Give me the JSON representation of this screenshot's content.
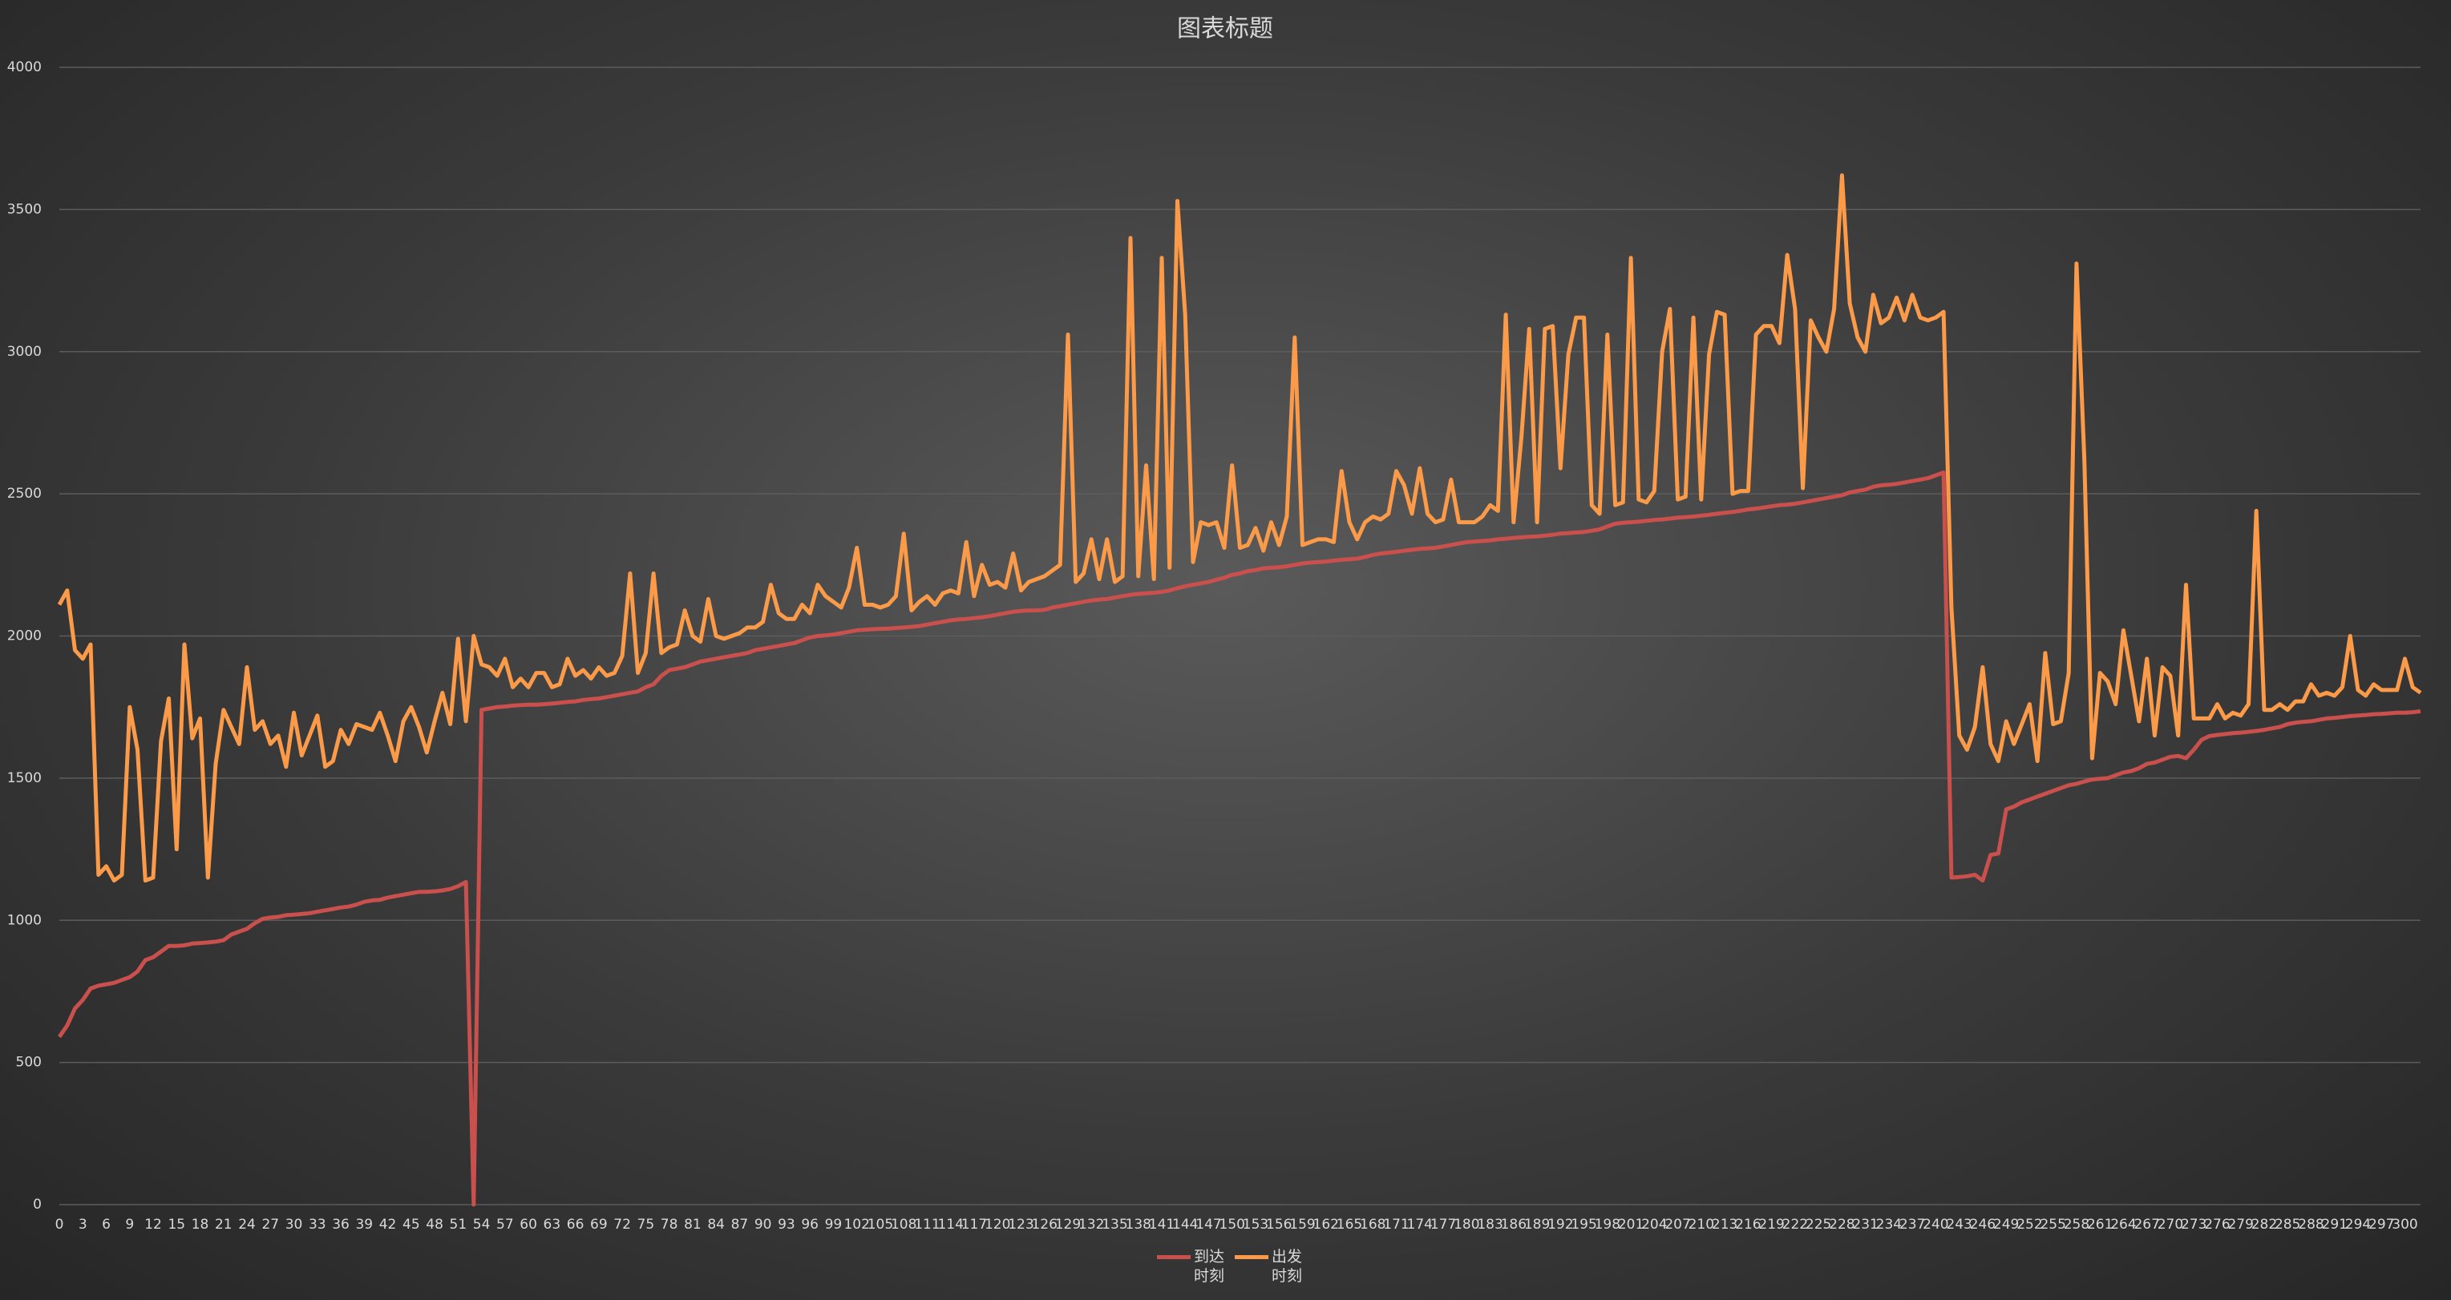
{
  "chart_data": {
    "type": "line",
    "title": "图表标题",
    "x": [
      0,
      1,
      2,
      3,
      4,
      5,
      6,
      7,
      8,
      9,
      10,
      11,
      12,
      13,
      14,
      15,
      16,
      17,
      18,
      19,
      20,
      21,
      22,
      23,
      24,
      25,
      26,
      27,
      28,
      29,
      30,
      31,
      32,
      33,
      34,
      35,
      36,
      37,
      38,
      39,
      40,
      41,
      42,
      43,
      44,
      45,
      46,
      47,
      48,
      49,
      50,
      51,
      52,
      53,
      54,
      55,
      56,
      57,
      58,
      59,
      60,
      61,
      62,
      63,
      64,
      65,
      66,
      67,
      68,
      69,
      70,
      71,
      72,
      73,
      74,
      75,
      76,
      77,
      78,
      79,
      80,
      81,
      82,
      83,
      84,
      85,
      86,
      87,
      88,
      89,
      90,
      91,
      92,
      93,
      94,
      95,
      96,
      97,
      98,
      99,
      100,
      101,
      102,
      103,
      104,
      105,
      106,
      107,
      108,
      109,
      110,
      111,
      112,
      113,
      114,
      115,
      116,
      117,
      118,
      119,
      120,
      121,
      122,
      123,
      124,
      125,
      126,
      127,
      128,
      129,
      130,
      131,
      132,
      133,
      134,
      135,
      136,
      137,
      138,
      139,
      140,
      141,
      142,
      143,
      144,
      145,
      146,
      147,
      148,
      149,
      150,
      151,
      152,
      153,
      154,
      155,
      156,
      157,
      158,
      159,
      160,
      161,
      162,
      163,
      164,
      165,
      166,
      167,
      168,
      169,
      170,
      171,
      172,
      173,
      174,
      175,
      176,
      177,
      178,
      179,
      180,
      181,
      182,
      183,
      184,
      185,
      186,
      187,
      188,
      189,
      190,
      191,
      192,
      193,
      194,
      195,
      196,
      197,
      198,
      199,
      200,
      201,
      202,
      203,
      204,
      205,
      206,
      207,
      208,
      209,
      210,
      211,
      212,
      213,
      214,
      215,
      216,
      217,
      218,
      219,
      220,
      221,
      222,
      223,
      224,
      225,
      226,
      227,
      228,
      229,
      230,
      231,
      232,
      233,
      234,
      235,
      236,
      237,
      238,
      239,
      240,
      241,
      242,
      243,
      244,
      245,
      246,
      247,
      248,
      249,
      250,
      251,
      252,
      253,
      254,
      255,
      256,
      257,
      258,
      259,
      260,
      261,
      262,
      263,
      264,
      265,
      266,
      267,
      268,
      269,
      270,
      271,
      272,
      273,
      274,
      275,
      276,
      277,
      278,
      279,
      280,
      281,
      282,
      283,
      284,
      285,
      286,
      287,
      288,
      289,
      290,
      291,
      292,
      293,
      294,
      295,
      296,
      297,
      298,
      299,
      300,
      301,
      302
    ],
    "xlim": [
      0,
      302
    ],
    "xticks": [
      0,
      3,
      6,
      9,
      12,
      15,
      18,
      21,
      24,
      27,
      30,
      33,
      36,
      39,
      42,
      45,
      48,
      51,
      54,
      57,
      60,
      63,
      66,
      69,
      72,
      75,
      78,
      81,
      84,
      87,
      90,
      93,
      96,
      99,
      102,
      105,
      108,
      111,
      114,
      117,
      120,
      123,
      126,
      129,
      132,
      135,
      138,
      141,
      144,
      147,
      150,
      153,
      156,
      159,
      162,
      165,
      168,
      171,
      174,
      177,
      180,
      183,
      186,
      189,
      192,
      195,
      198,
      201,
      204,
      207,
      210,
      213,
      216,
      219,
      222,
      225,
      228,
      231,
      234,
      237,
      240,
      243,
      246,
      249,
      252,
      255,
      258,
      261,
      264,
      267,
      270,
      273,
      276,
      279,
      282,
      285,
      288,
      291,
      294,
      297,
      300
    ],
    "ylim": [
      0,
      4000
    ],
    "yticks": [
      0,
      500,
      1000,
      1500,
      2000,
      2500,
      3000,
      3500,
      4000
    ],
    "grid": true,
    "legend": "bottom",
    "series": [
      {
        "name": "到达时刻",
        "color": "#c9504c",
        "values": [
          590,
          630,
          690,
          720,
          760,
          770,
          775,
          780,
          790,
          800,
          820,
          860,
          870,
          890,
          910,
          910,
          912,
          918,
          920,
          922,
          925,
          930,
          950,
          960,
          970,
          990,
          1005,
          1010,
          1012,
          1018,
          1020,
          1022,
          1025,
          1030,
          1035,
          1040,
          1045,
          1048,
          1055,
          1065,
          1070,
          1072,
          1080,
          1085,
          1090,
          1095,
          1100,
          1100,
          1102,
          1105,
          1110,
          1120,
          1135,
          0,
          1740,
          1745,
          1750,
          1752,
          1755,
          1757,
          1758,
          1758,
          1760,
          1762,
          1765,
          1768,
          1770,
          1775,
          1778,
          1780,
          1785,
          1790,
          1795,
          1800,
          1805,
          1820,
          1830,
          1860,
          1880,
          1885,
          1890,
          1900,
          1910,
          1915,
          1920,
          1925,
          1930,
          1935,
          1940,
          1950,
          1955,
          1960,
          1965,
          1970,
          1975,
          1985,
          1995,
          2000,
          2002,
          2005,
          2010,
          2015,
          2020,
          2022,
          2024,
          2025,
          2026,
          2028,
          2030,
          2032,
          2035,
          2040,
          2045,
          2050,
          2055,
          2058,
          2060,
          2063,
          2066,
          2070,
          2075,
          2080,
          2085,
          2088,
          2090,
          2090,
          2092,
          2100,
          2105,
          2110,
          2115,
          2120,
          2125,
          2128,
          2130,
          2135,
          2140,
          2145,
          2148,
          2150,
          2152,
          2155,
          2160,
          2168,
          2175,
          2180,
          2185,
          2190,
          2198,
          2205,
          2215,
          2220,
          2228,
          2232,
          2238,
          2240,
          2242,
          2245,
          2250,
          2255,
          2258,
          2260,
          2262,
          2265,
          2268,
          2270,
          2272,
          2278,
          2285,
          2290,
          2293,
          2296,
          2300,
          2303,
          2306,
          2308,
          2310,
          2315,
          2320,
          2325,
          2330,
          2332,
          2334,
          2336,
          2340,
          2342,
          2345,
          2347,
          2349,
          2350,
          2353,
          2356,
          2360,
          2362,
          2364,
          2366,
          2370,
          2375,
          2385,
          2395,
          2398,
          2400,
          2402,
          2405,
          2408,
          2410,
          2413,
          2416,
          2418,
          2420,
          2423,
          2426,
          2430,
          2433,
          2436,
          2440,
          2445,
          2448,
          2452,
          2456,
          2460,
          2462,
          2465,
          2470,
          2475,
          2480,
          2485,
          2490,
          2495,
          2505,
          2510,
          2515,
          2525,
          2530,
          2532,
          2535,
          2540,
          2545,
          2550,
          2555,
          2565,
          2575,
          1150,
          1152,
          1155,
          1160,
          1140,
          1230,
          1235,
          1390,
          1400,
          1415,
          1425,
          1435,
          1445,
          1455,
          1465,
          1475,
          1480,
          1488,
          1495,
          1498,
          1500,
          1510,
          1520,
          1525,
          1535,
          1550,
          1555,
          1565,
          1575,
          1578,
          1570,
          1600,
          1635,
          1648,
          1652,
          1655,
          1658,
          1660,
          1663,
          1666,
          1670,
          1675,
          1680,
          1690,
          1695,
          1698,
          1700,
          1705,
          1710,
          1712,
          1715,
          1718,
          1720,
          1722,
          1725,
          1726,
          1728,
          1730,
          1730,
          1732,
          1735
        ]
      },
      {
        "name": "出发时刻",
        "color": "#fb9a48",
        "values": [
          2110,
          2160,
          1950,
          1920,
          1970,
          1160,
          1190,
          1140,
          1160,
          1750,
          1600,
          1140,
          1150,
          1630,
          1780,
          1250,
          1970,
          1640,
          1710,
          1150,
          1550,
          1740,
          1680,
          1620,
          1890,
          1670,
          1700,
          1620,
          1650,
          1540,
          1730,
          1580,
          1650,
          1720,
          1540,
          1560,
          1670,
          1620,
          1690,
          1680,
          1670,
          1730,
          1650,
          1560,
          1700,
          1750,
          1680,
          1590,
          1700,
          1800,
          1690,
          1990,
          1700,
          2000,
          1900,
          1890,
          1860,
          1920,
          1820,
          1850,
          1820,
          1870,
          1870,
          1820,
          1830,
          1920,
          1860,
          1880,
          1850,
          1890,
          1860,
          1870,
          1930,
          2220,
          1870,
          1940,
          2220,
          1940,
          1960,
          1970,
          2090,
          2000,
          1980,
          2130,
          2000,
          1990,
          2000,
          2010,
          2030,
          2030,
          2050,
          2180,
          2080,
          2060,
          2060,
          2110,
          2080,
          2180,
          2140,
          2120,
          2100,
          2170,
          2310,
          2110,
          2110,
          2100,
          2110,
          2140,
          2360,
          2090,
          2120,
          2140,
          2110,
          2150,
          2160,
          2150,
          2330,
          2140,
          2250,
          2180,
          2190,
          2170,
          2290,
          2160,
          2190,
          2200,
          2210,
          2230,
          2250,
          3060,
          2190,
          2220,
          2340,
          2200,
          2340,
          2190,
          2210,
          3400,
          2210,
          2600,
          2200,
          3330,
          2240,
          3530,
          3130,
          2260,
          2400,
          2390,
          2400,
          2310,
          2600,
          2310,
          2320,
          2380,
          2300,
          2400,
          2320,
          2420,
          3050,
          2320,
          2330,
          2340,
          2340,
          2330,
          2580,
          2400,
          2340,
          2400,
          2420,
          2410,
          2430,
          2580,
          2530,
          2430,
          2590,
          2430,
          2400,
          2410,
          2550,
          2400,
          2400,
          2400,
          2420,
          2460,
          2440,
          3130,
          2400,
          2700,
          3080,
          2400,
          3080,
          3090,
          2590,
          2990,
          3120,
          3120,
          2460,
          2430,
          3060,
          2460,
          2470,
          3330,
          2480,
          2470,
          2510,
          3000,
          3150,
          2480,
          2490,
          3120,
          2480,
          2990,
          3140,
          3130,
          2500,
          2510,
          2510,
          3060,
          3090,
          3090,
          3030,
          3340,
          3150,
          2520,
          3110,
          3050,
          3000,
          3150,
          3620,
          3170,
          3050,
          3000,
          3200,
          3100,
          3120,
          3190,
          3110,
          3200,
          3120,
          3110,
          3120,
          3140,
          2100,
          1650,
          1600,
          1680,
          1890,
          1620,
          1560,
          1700,
          1620,
          1690,
          1760,
          1560,
          1940,
          1690,
          1700,
          1870,
          3310,
          2620,
          1570,
          1870,
          1840,
          1760,
          2020,
          1860,
          1700,
          1920,
          1650,
          1890,
          1860,
          1650,
          2180,
          1710,
          1710,
          1710,
          1760,
          1710,
          1730,
          1720,
          1760,
          2440,
          1740,
          1740,
          1760,
          1740,
          1770,
          1770,
          1830,
          1790,
          1800,
          1790,
          1820,
          2000,
          1810,
          1790,
          1830,
          1810,
          1810,
          1810,
          1920,
          1820,
          1800
        ]
      }
    ]
  }
}
